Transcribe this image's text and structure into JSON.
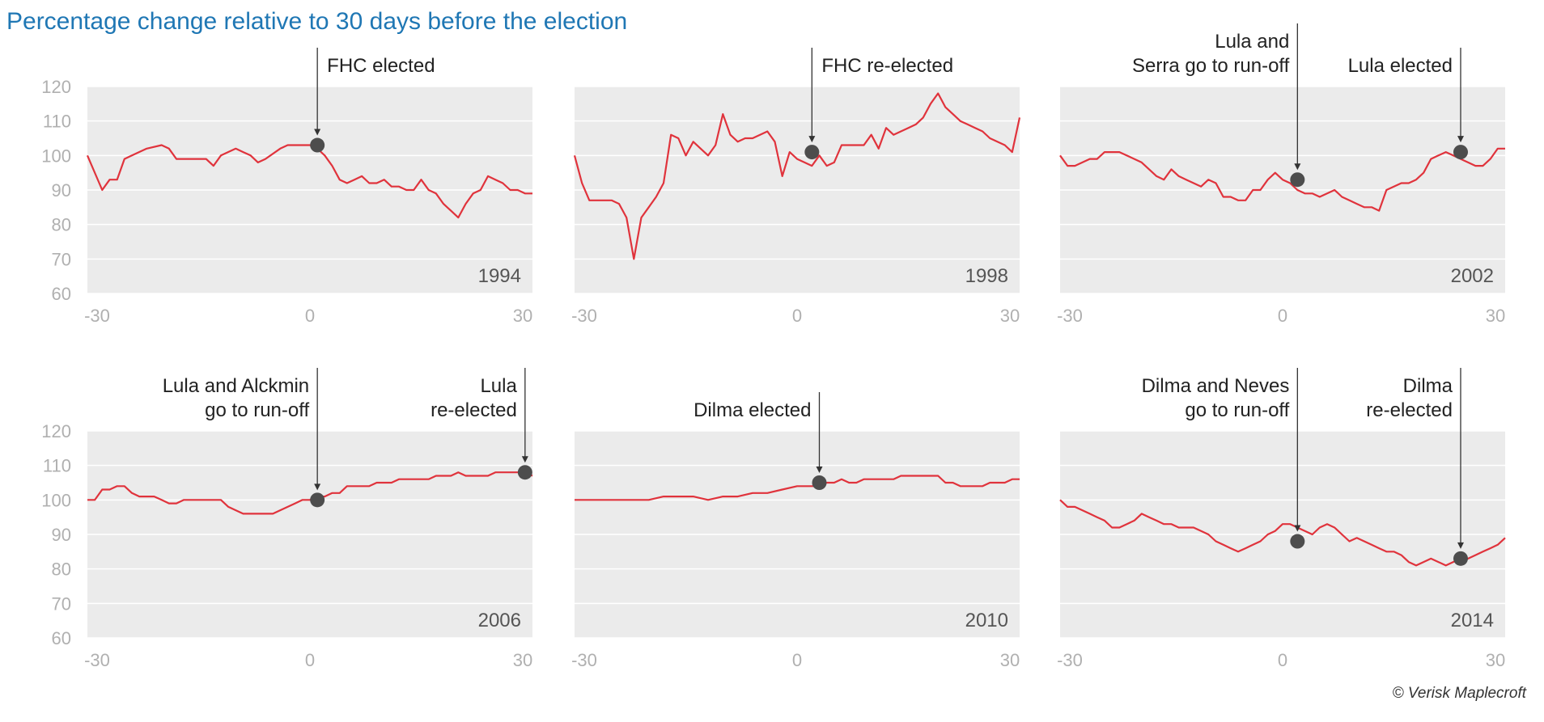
{
  "title": "Percentage change relative to 30 days before the election",
  "credit": "© Verisk Maplecroft",
  "colors": {
    "line": "#e0333c",
    "plot_bg": "#ebebeb",
    "marker": "#4d4d4d",
    "title": "#1f77b4",
    "ticks": "#b0b0b0"
  },
  "chart_data": [
    {
      "type": "line",
      "year": "1994",
      "xlim": [
        -30,
        30
      ],
      "ylim": [
        60,
        120
      ],
      "xticks": [
        "-30",
        "0",
        "30"
      ],
      "yticks": [
        "120",
        "110",
        "100",
        "90",
        "80",
        "70",
        "60"
      ],
      "x": [
        -30,
        -28,
        -27,
        -26,
        -25,
        -24,
        -22,
        -20,
        -19,
        -18,
        -17,
        -15,
        -14,
        -13,
        -12,
        -10,
        -9,
        -8,
        -7,
        -6,
        -4,
        -3,
        -2,
        0,
        1,
        2,
        3,
        4,
        5,
        6,
        7,
        8,
        9,
        10,
        11,
        12,
        13,
        14,
        15,
        16,
        17,
        18,
        19,
        20,
        21,
        22,
        23,
        24,
        25,
        26,
        27,
        28,
        29,
        30
      ],
      "y": [
        100,
        90,
        93,
        93,
        99,
        100,
        102,
        103,
        102,
        99,
        99,
        99,
        99,
        97,
        100,
        102,
        101,
        100,
        98,
        99,
        102,
        103,
        103,
        103,
        102,
        100,
        97,
        93,
        92,
        93,
        94,
        92,
        92,
        93,
        91,
        91,
        90,
        90,
        93,
        90,
        89,
        86,
        84,
        82,
        86,
        89,
        90,
        94,
        93,
        92,
        90,
        90,
        89,
        89
      ],
      "annotations": [
        {
          "x": 1,
          "y": 103,
          "lines": [
            "FHC elected"
          ],
          "align": "left"
        }
      ]
    },
    {
      "type": "line",
      "year": "1998",
      "xlim": [
        -30,
        30
      ],
      "ylim": [
        60,
        120
      ],
      "xticks": [
        "-30",
        "0",
        "30"
      ],
      "yticks": [
        "120",
        "110",
        "100",
        "90",
        "80",
        "70",
        "60"
      ],
      "x": [
        -30,
        -29,
        -28,
        -25,
        -24,
        -23,
        -22,
        -21,
        -20,
        -19,
        -18,
        -17,
        -16,
        -15,
        -14,
        -13,
        -12,
        -11,
        -10,
        -9,
        -8,
        -7,
        -6,
        -5,
        -4,
        -3,
        -2,
        -1,
        0,
        1,
        2,
        3,
        4,
        5,
        6,
        7,
        8,
        9,
        10,
        11,
        12,
        13,
        14,
        15,
        16,
        17,
        18,
        19,
        20,
        21,
        22,
        23,
        24,
        25,
        26,
        27,
        28,
        29,
        30
      ],
      "y": [
        100,
        92,
        87,
        87,
        86,
        82,
        70,
        82,
        85,
        88,
        92,
        106,
        105,
        100,
        104,
        102,
        100,
        103,
        112,
        106,
        104,
        105,
        105,
        106,
        107,
        104,
        94,
        101,
        99,
        98,
        97,
        100,
        97,
        98,
        103,
        103,
        103,
        103,
        106,
        102,
        108,
        106,
        107,
        108,
        109,
        111,
        115,
        118,
        114,
        112,
        110,
        109,
        108,
        107,
        105,
        104,
        103,
        101,
        111
      ],
      "annotations": [
        {
          "x": 2,
          "y": 101,
          "lines": [
            "FHC re-elected"
          ],
          "align": "left"
        }
      ]
    },
    {
      "type": "line",
      "year": "2002",
      "xlim": [
        -30,
        30
      ],
      "ylim": [
        60,
        120
      ],
      "xticks": [
        "-30",
        "0",
        "30"
      ],
      "yticks": [
        "120",
        "110",
        "100",
        "90",
        "80",
        "70",
        "60"
      ],
      "x": [
        -30,
        -29,
        -28,
        -27,
        -26,
        -25,
        -24,
        -23,
        -22,
        -20,
        -19,
        -18,
        -17,
        -16,
        -15,
        -14,
        -13,
        -12,
        -11,
        -10,
        -9,
        -8,
        -7,
        -6,
        -5,
        -4,
        -3,
        -2,
        -1,
        0,
        1,
        2,
        3,
        4,
        5,
        6,
        7,
        8,
        9,
        10,
        11,
        12,
        13,
        14,
        15,
        16,
        17,
        18,
        19,
        20,
        21,
        22,
        23,
        24,
        25,
        26,
        27,
        28,
        29,
        30
      ],
      "y": [
        100,
        97,
        97,
        98,
        99,
        99,
        101,
        101,
        101,
        99,
        98,
        96,
        94,
        93,
        96,
        94,
        93,
        92,
        91,
        93,
        92,
        88,
        88,
        87,
        87,
        90,
        90,
        93,
        95,
        93,
        92,
        90,
        89,
        89,
        88,
        89,
        90,
        88,
        87,
        86,
        85,
        85,
        84,
        90,
        91,
        92,
        92,
        93,
        95,
        99,
        100,
        101,
        100,
        99,
        98,
        97,
        97,
        99,
        102,
        102
      ],
      "annotations": [
        {
          "x": 2,
          "y": 93,
          "lines": [
            "Lula and",
            "Serra go to run-off"
          ],
          "align": "right"
        },
        {
          "x": 24,
          "y": 101,
          "lines": [
            "Lula elected"
          ],
          "align": "right"
        }
      ]
    },
    {
      "type": "line",
      "year": "2006",
      "xlim": [
        -30,
        30
      ],
      "ylim": [
        60,
        120
      ],
      "xticks": [
        "-30",
        "0",
        "30"
      ],
      "yticks": [
        "120",
        "110",
        "100",
        "90",
        "80",
        "70",
        "60"
      ],
      "x": [
        -30,
        -29,
        -28,
        -27,
        -26,
        -25,
        -24,
        -23,
        -22,
        -21,
        -20,
        -19,
        -18,
        -17,
        -16,
        -15,
        -14,
        -13,
        -12,
        -11,
        -10,
        -9,
        -8,
        -7,
        -6,
        -5,
        -4,
        -3,
        -2,
        -1,
        0,
        1,
        2,
        3,
        4,
        5,
        6,
        7,
        8,
        9,
        10,
        11,
        12,
        13,
        14,
        15,
        16,
        17,
        18,
        19,
        20,
        21,
        22,
        23,
        24,
        25,
        26,
        27,
        28,
        29,
        30
      ],
      "y": [
        100,
        100,
        103,
        103,
        104,
        104,
        102,
        101,
        101,
        101,
        100,
        99,
        99,
        100,
        100,
        100,
        100,
        100,
        100,
        98,
        97,
        96,
        96,
        96,
        96,
        96,
        97,
        98,
        99,
        100,
        100,
        101,
        101,
        102,
        102,
        104,
        104,
        104,
        104,
        105,
        105,
        105,
        106,
        106,
        106,
        106,
        106,
        107,
        107,
        107,
        108,
        107,
        107,
        107,
        107,
        108,
        108,
        108,
        108,
        108,
        107
      ],
      "annotations": [
        {
          "x": 1,
          "y": 100,
          "lines": [
            "Lula and Alckmin",
            "go to run-off"
          ],
          "align": "right"
        },
        {
          "x": 29,
          "y": 108,
          "lines": [
            "Lula",
            "re-elected"
          ],
          "align": "right"
        }
      ]
    },
    {
      "type": "line",
      "year": "2010",
      "xlim": [
        -30,
        30
      ],
      "ylim": [
        60,
        120
      ],
      "xticks": [
        "-30",
        "0",
        "30"
      ],
      "yticks": [
        "120",
        "110",
        "100",
        "90",
        "80",
        "70",
        "60"
      ],
      "x": [
        -30,
        -28,
        -26,
        -24,
        -22,
        -20,
        -18,
        -16,
        -14,
        -12,
        -10,
        -8,
        -6,
        -4,
        -2,
        0,
        1,
        2,
        3,
        4,
        5,
        6,
        7,
        8,
        9,
        10,
        11,
        12,
        13,
        14,
        15,
        16,
        17,
        18,
        19,
        20,
        21,
        22,
        23,
        24,
        25,
        26,
        27,
        28,
        29,
        30
      ],
      "y": [
        100,
        100,
        100,
        100,
        100,
        100,
        101,
        101,
        101,
        100,
        101,
        101,
        102,
        102,
        103,
        104,
        104,
        104,
        104,
        105,
        105,
        106,
        105,
        105,
        106,
        106,
        106,
        106,
        106,
        107,
        107,
        107,
        107,
        107,
        107,
        105,
        105,
        104,
        104,
        104,
        104,
        105,
        105,
        105,
        106,
        106
      ],
      "annotations": [
        {
          "x": 3,
          "y": 105,
          "lines": [
            "Dilma elected"
          ],
          "align": "right"
        }
      ]
    },
    {
      "type": "line",
      "year": "2014",
      "xlim": [
        -30,
        30
      ],
      "ylim": [
        60,
        120
      ],
      "xticks": [
        "-30",
        "0",
        "30"
      ],
      "yticks": [
        "120",
        "110",
        "100",
        "90",
        "80",
        "70",
        "60"
      ],
      "x": [
        -30,
        -29,
        -28,
        -27,
        -26,
        -25,
        -24,
        -23,
        -22,
        -21,
        -20,
        -19,
        -18,
        -17,
        -16,
        -15,
        -14,
        -13,
        -12,
        -11,
        -10,
        -9,
        -8,
        -7,
        -6,
        -5,
        -4,
        -3,
        -2,
        -1,
        0,
        1,
        2,
        3,
        4,
        5,
        6,
        7,
        8,
        9,
        10,
        11,
        12,
        13,
        14,
        15,
        16,
        17,
        18,
        19,
        20,
        21,
        22,
        23,
        24,
        25,
        26,
        27,
        28,
        29,
        30
      ],
      "y": [
        100,
        98,
        98,
        97,
        96,
        95,
        94,
        92,
        92,
        93,
        94,
        96,
        95,
        94,
        93,
        93,
        92,
        92,
        92,
        91,
        90,
        88,
        87,
        86,
        85,
        86,
        87,
        88,
        90,
        91,
        93,
        93,
        92,
        91,
        90,
        92,
        93,
        92,
        90,
        88,
        89,
        88,
        87,
        86,
        85,
        85,
        84,
        82,
        81,
        82,
        83,
        82,
        81,
        82,
        83,
        83,
        84,
        85,
        86,
        87,
        89
      ],
      "annotations": [
        {
          "x": 2,
          "y": 88,
          "lines": [
            "Dilma and Neves",
            "go to run-off"
          ],
          "align": "right"
        },
        {
          "x": 24,
          "y": 83,
          "lines": [
            "Dilma",
            "re-elected"
          ],
          "align": "right"
        }
      ]
    }
  ]
}
